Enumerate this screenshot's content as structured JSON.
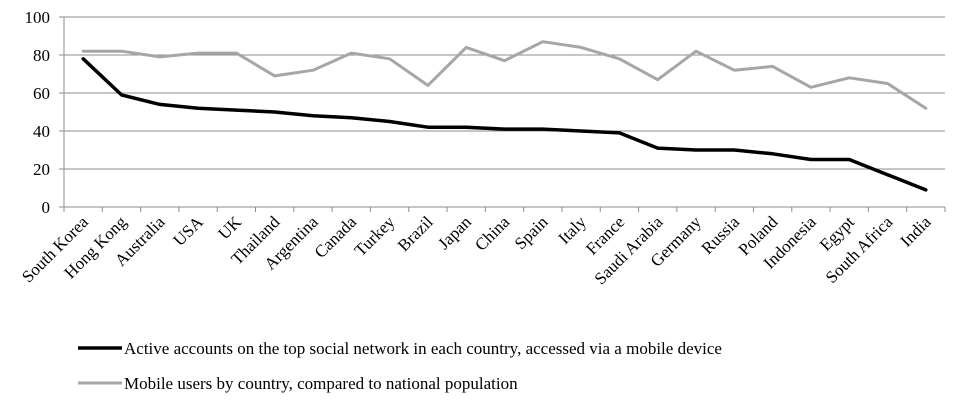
{
  "chart_data": {
    "type": "line",
    "title": "",
    "xlabel": "",
    "ylabel": "",
    "ylim": [
      0,
      100
    ],
    "yticks": [
      0,
      20,
      40,
      60,
      80,
      100
    ],
    "grid": "horizontal",
    "legend_position": "bottom",
    "categories": [
      "South Korea",
      "Hong Kong",
      "Australia",
      "USA",
      "UK",
      "Thailand",
      "Argentina",
      "Canada",
      "Turkey",
      "Brazil",
      "Japan",
      "China",
      "Spain",
      "Italy",
      "France",
      "Saudi Arabia",
      "Germany",
      "Russia",
      "Poland",
      "Indonesia",
      "Egypt",
      "South Africa",
      "India"
    ],
    "series": [
      {
        "name": "Active accounts on the top social network in each country, accessed via a mobile device",
        "color": "#000000",
        "values": [
          78,
          59,
          54,
          52,
          51,
          50,
          48,
          47,
          45,
          42,
          42,
          41,
          41,
          40,
          39,
          31,
          30,
          30,
          28,
          25,
          25,
          17,
          9
        ]
      },
      {
        "name": "Mobile users by country, compared to national population",
        "color": "#a6a6a6",
        "values": [
          82,
          82,
          79,
          81,
          81,
          69,
          72,
          81,
          78,
          64,
          84,
          77,
          87,
          84,
          78,
          67,
          82,
          72,
          74,
          63,
          68,
          65,
          52
        ]
      }
    ]
  }
}
